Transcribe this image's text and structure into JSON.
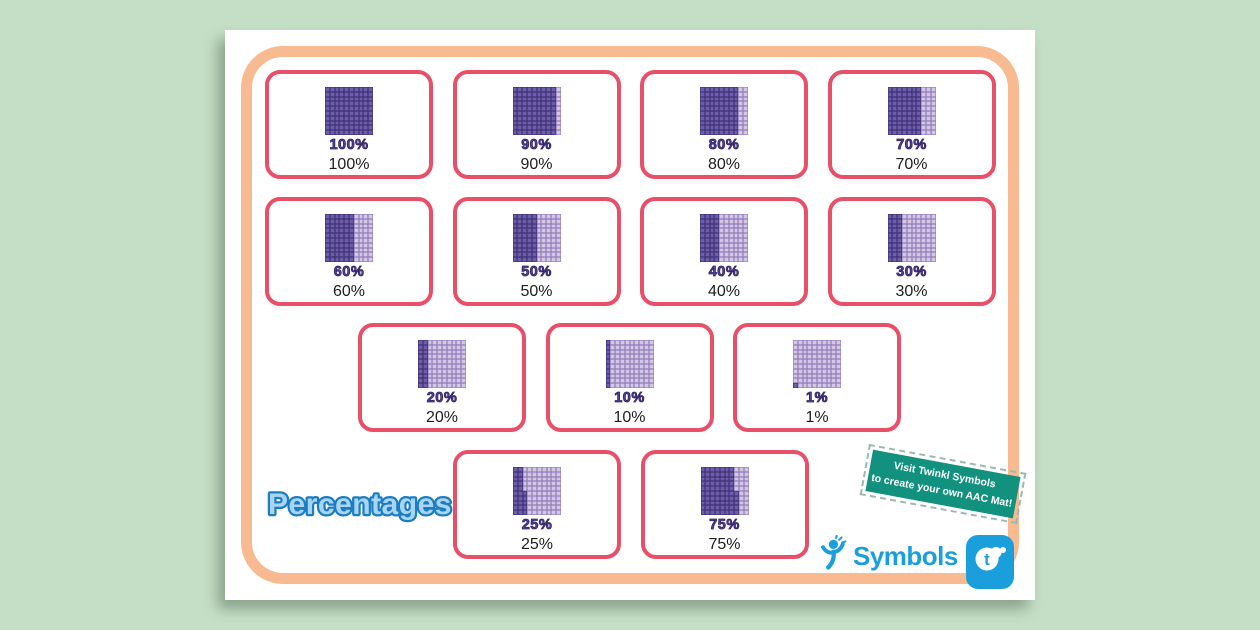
{
  "title": "Percentages",
  "cards": [
    {
      "percent": 100,
      "grid_label": "100%",
      "text_label": "100%"
    },
    {
      "percent": 90,
      "grid_label": "90%",
      "text_label": "90%"
    },
    {
      "percent": 80,
      "grid_label": "80%",
      "text_label": "80%"
    },
    {
      "percent": 70,
      "grid_label": "70%",
      "text_label": "70%"
    },
    {
      "percent": 60,
      "grid_label": "60%",
      "text_label": "60%"
    },
    {
      "percent": 50,
      "grid_label": "50%",
      "text_label": "50%"
    },
    {
      "percent": 40,
      "grid_label": "40%",
      "text_label": "40%"
    },
    {
      "percent": 30,
      "grid_label": "30%",
      "text_label": "30%"
    },
    {
      "percent": 20,
      "grid_label": "20%",
      "text_label": "20%"
    },
    {
      "percent": 10,
      "grid_label": "10%",
      "text_label": "10%"
    },
    {
      "percent": 1,
      "grid_label": "1%",
      "text_label": "1%"
    },
    {
      "percent": 25,
      "grid_label": "25%",
      "text_label": "25%"
    },
    {
      "percent": 75,
      "grid_label": "75%",
      "text_label": "75%"
    }
  ],
  "ribbon": {
    "line1": "Visit Twinkl Symbols",
    "line2": "to create your own AAC Mat!"
  },
  "logo": {
    "wordmark": "Symbols",
    "badge_letter": "t"
  },
  "colors": {
    "background": "#c5dfc6",
    "frame": "#f8ba90",
    "card_border": "#e84f68",
    "grid_dark_fill": "#6c5ea9",
    "grid_dark_line": "#3f3076",
    "grid_light_fill": "#d4c6e4",
    "grid_light_line": "#8f7eba",
    "percent_label": "#54429d",
    "title_fill": "#a9d5f2",
    "title_stroke": "#1b7ec2",
    "ribbon_green": "#12917e",
    "twinkl_blue": "#1b9fdc"
  }
}
